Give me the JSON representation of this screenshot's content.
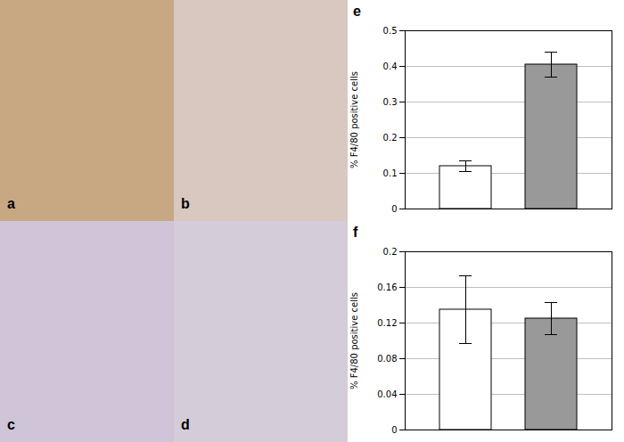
{
  "chart_data": [
    {
      "type": "image",
      "title": "a",
      "color": "#c8a882"
    },
    {
      "type": "image",
      "title": "b",
      "color": "#d8c8c0"
    },
    {
      "type": "image",
      "title": "c",
      "color": "#d0c4d8"
    },
    {
      "type": "image",
      "title": "d",
      "color": "#d4ccd8"
    },
    {
      "type": "bar",
      "title": "e",
      "categories": [
        null,
        null
      ],
      "values": [
        0.12,
        0.405
      ],
      "errors": [
        0.015,
        0.035
      ],
      "colors": [
        "white",
        "#999999"
      ],
      "ylabel": "% F4/80 positive cells",
      "ylim": [
        0,
        0.5
      ],
      "yticks": [
        0,
        0.1,
        0.2,
        0.3,
        0.4,
        0.5
      ],
      "grid": true,
      "tick_labels": "y"
    },
    {
      "type": "bar",
      "title": "f",
      "categories": [
        null,
        null
      ],
      "values": [
        0.135,
        0.125
      ],
      "errors": [
        0.038,
        0.018
      ],
      "colors": [
        "white",
        "#999999"
      ],
      "ylabel": "% F4/80 positive cells",
      "ylim": [
        0,
        0.2
      ],
      "yticks": [
        0,
        0.04,
        0.08,
        0.12,
        0.16,
        0.2
      ],
      "grid": true,
      "tick_labels": "y"
    }
  ]
}
